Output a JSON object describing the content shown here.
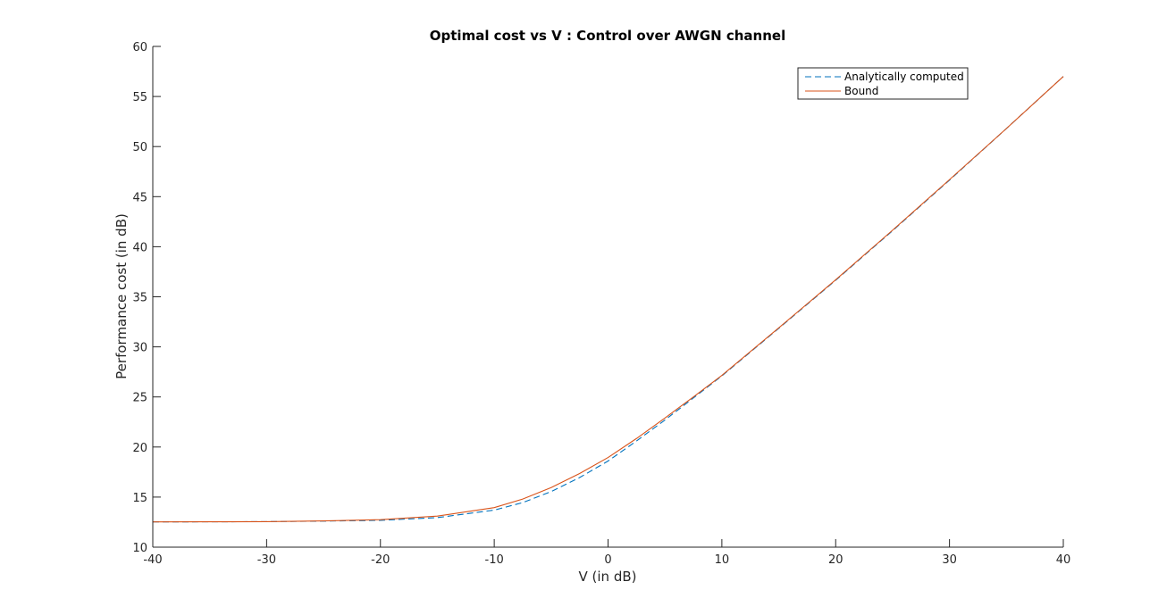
{
  "chart_data": {
    "type": "line",
    "title": "Optimal cost vs V : Control over AWGN channel",
    "xlabel": "V (in dB)",
    "ylabel": "Performance cost (in dB)",
    "xlim": [
      -40,
      40
    ],
    "ylim": [
      10,
      60
    ],
    "xticks": [
      -40,
      -30,
      -20,
      -10,
      0,
      10,
      20,
      30,
      40
    ],
    "yticks": [
      10,
      15,
      20,
      25,
      30,
      35,
      40,
      45,
      50,
      55,
      60
    ],
    "grid": false,
    "legend_position": "top-right",
    "x": [
      -40,
      -35,
      -30,
      -25,
      -20,
      -15,
      -10,
      -7.5,
      -5,
      -2.5,
      0,
      2.5,
      5,
      7.5,
      10,
      15,
      20,
      25,
      30,
      35,
      40
    ],
    "series": [
      {
        "name": "Analytically computed",
        "style": "dashed",
        "color": "#0072BD",
        "values": [
          12.52,
          12.53,
          12.55,
          12.6,
          12.68,
          12.95,
          13.7,
          14.45,
          15.55,
          16.95,
          18.6,
          20.6,
          22.7,
          24.9,
          27.1,
          31.85,
          36.65,
          41.6,
          46.65,
          51.8,
          57.0
        ]
      },
      {
        "name": "Bound",
        "style": "solid",
        "color": "#D95319",
        "values": [
          12.52,
          12.53,
          12.55,
          12.62,
          12.75,
          13.1,
          13.95,
          14.8,
          15.95,
          17.35,
          18.95,
          20.85,
          22.9,
          25.0,
          27.15,
          31.9,
          36.7,
          41.65,
          46.7,
          51.8,
          57.0
        ]
      }
    ]
  }
}
